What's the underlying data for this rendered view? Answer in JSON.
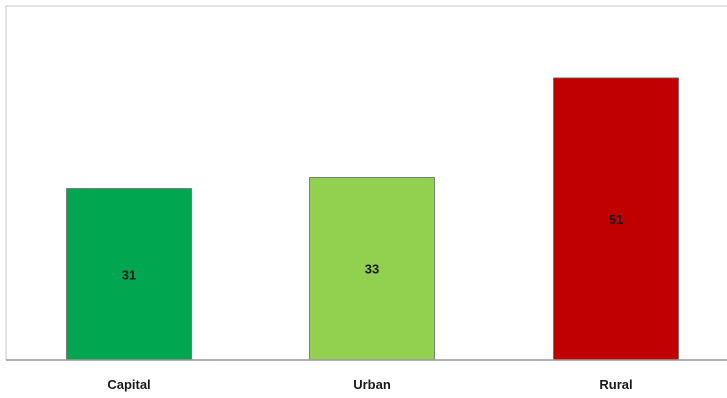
{
  "chart_data": {
    "type": "bar",
    "categories": [
      "Capital",
      "Urban",
      "Rural"
    ],
    "values": [
      31,
      33,
      51
    ],
    "data_labels": [
      "31",
      "33",
      "51"
    ],
    "colors": [
      "#00a650",
      "#92d050",
      "#c00000"
    ],
    "ylim": [
      0,
      64
    ],
    "grid": false,
    "legend": "none"
  }
}
